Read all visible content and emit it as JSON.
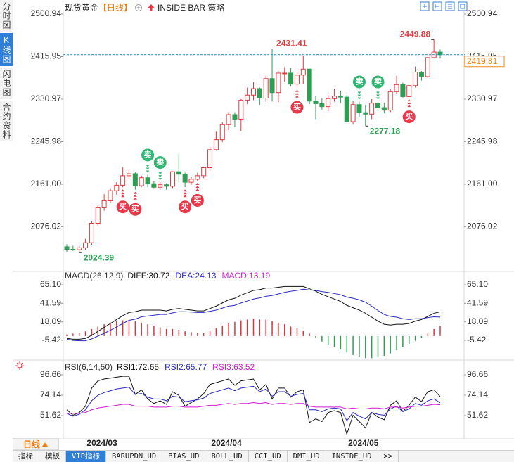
{
  "header": {
    "instrument": "现货黄金",
    "period": "【日线】",
    "strategy": "INSIDE BAR 策略"
  },
  "sidebar": {
    "tabs": [
      "分时图",
      "K线图",
      "闪电图",
      "合约资料"
    ],
    "selected": "K线图"
  },
  "chart_data": [
    {
      "type": "candlestick",
      "categories": [
        null,
        null,
        null,
        null,
        "2024/03",
        null,
        null,
        null,
        null,
        null,
        null,
        null,
        null,
        null,
        null,
        null,
        null,
        null,
        null,
        null,
        null,
        null,
        null,
        null,
        "2024/04",
        null,
        null,
        null,
        null,
        null,
        null,
        null,
        null,
        null,
        null,
        null,
        null,
        null,
        null,
        null,
        null,
        null,
        null,
        null,
        null,
        null,
        "2024/05",
        null,
        null,
        null,
        null,
        null,
        null,
        null,
        null,
        null,
        null,
        null,
        null,
        null,
        null
      ],
      "open": [
        2036,
        2031,
        2030,
        2034,
        2044,
        2083,
        2114,
        2128,
        2148,
        2159,
        2178,
        2182,
        2158,
        2174,
        2162,
        2155,
        2160,
        2157,
        2186,
        2181,
        2165,
        2171,
        2178,
        2194,
        2230,
        2250,
        2280,
        2300,
        2291,
        2329,
        2339,
        2352,
        2333,
        2372,
        2344,
        2383,
        2383,
        2361,
        2379,
        2391,
        2327,
        2322,
        2316,
        2332,
        2337,
        2335,
        2286,
        2320,
        2304,
        2301,
        2323,
        2314,
        2309,
        2346,
        2360,
        2336,
        2358,
        2385,
        2376,
        2414,
        2425
      ],
      "high": [
        2041,
        2038,
        2040,
        2052,
        2088,
        2119,
        2141,
        2152,
        2165,
        2195,
        2189,
        2185,
        2178,
        2180,
        2168,
        2165,
        2163,
        2187,
        2222,
        2184,
        2176,
        2184,
        2196,
        2236,
        2266,
        2285,
        2305,
        2305,
        2331,
        2354,
        2365,
        2354,
        2378,
        2431.41,
        2387,
        2395,
        2393,
        2386,
        2418,
        2392,
        2337,
        2333,
        2339,
        2352,
        2348,
        2339,
        2327,
        2326,
        2320,
        2331,
        2326,
        2324,
        2351,
        2378,
        2364,
        2359,
        2396,
        2387,
        2415,
        2449.88,
        2430
      ],
      "low": [
        2025,
        2028,
        2024.39,
        2030,
        2040,
        2079,
        2108,
        2124,
        2140,
        2155,
        2170,
        2150,
        2155,
        2155,
        2152,
        2150,
        2150,
        2152,
        2165,
        2155,
        2160,
        2168,
        2173,
        2188,
        2228,
        2245,
        2269,
        2275,
        2267,
        2321,
        2329,
        2319,
        2325,
        2326,
        2325,
        2366,
        2356,
        2354,
        2362,
        2321,
        2291,
        2310,
        2307,
        2326,
        2323,
        2285,
        2280,
        2296,
        2277.18,
        2291,
        2307,
        2303,
        2305,
        2342,
        2334,
        2335,
        2354,
        2368,
        2374,
        2413,
        2412
      ],
      "close": [
        2031,
        2030,
        2034,
        2044,
        2083,
        2114,
        2128,
        2148,
        2159,
        2178,
        2182,
        2158,
        2174,
        2162,
        2155,
        2160,
        2157,
        2186,
        2181,
        2165,
        2171,
        2178,
        2194,
        2230,
        2250,
        2280,
        2300,
        2291,
        2329,
        2339,
        2352,
        2333,
        2372,
        2344,
        2383,
        2383,
        2361,
        2379,
        2391,
        2327,
        2322,
        2316,
        2332,
        2337,
        2335,
        2286,
        2320,
        2304,
        2301,
        2323,
        2314,
        2309,
        2346,
        2360,
        2336,
        2358,
        2385,
        2376,
        2414,
        2425,
        2419.81
      ],
      "signals": [
        null,
        null,
        null,
        null,
        null,
        null,
        null,
        null,
        null,
        "买",
        null,
        "买",
        null,
        "卖",
        null,
        "卖",
        null,
        null,
        null,
        "买",
        null,
        "买",
        null,
        null,
        null,
        null,
        null,
        null,
        null,
        null,
        null,
        null,
        null,
        null,
        null,
        null,
        null,
        "买",
        null,
        null,
        null,
        null,
        null,
        null,
        null,
        null,
        null,
        "卖",
        null,
        null,
        "卖",
        null,
        null,
        null,
        null,
        "买",
        null,
        null,
        null,
        null,
        null
      ],
      "annotations": [
        2431.41,
        2449.88,
        2277.18,
        2024.39
      ],
      "up_color": "#e0393e",
      "down_color": "#2e9e55",
      "last_price_color": "#f08a1c",
      "last_line_color": "#2a8fbd",
      "buy_color": "#e8394a",
      "sell_color": "#2eb872",
      "ylim": [
        1988.15,
        2500.94
      ],
      "yticks": [
        2500.94,
        2415.95,
        2330.97,
        2245.98,
        {
          "value": 2161,
          "label": "2161.00"
        },
        2076.02
      ]
    },
    {
      "type": "macd",
      "title": "MACD(26,12,9)",
      "series": [
        {
          "name": "DIFF:30.72",
          "color": "#111111",
          "values": [
            -3,
            -4,
            -4,
            -3,
            1,
            6,
            11,
            16,
            21,
            26,
            30,
            31,
            33,
            33,
            33,
            33,
            32,
            34,
            35,
            34,
            33,
            32,
            32,
            35,
            38,
            42,
            46,
            48,
            52,
            55,
            58,
            59,
            61,
            61,
            62,
            63,
            63,
            63,
            63,
            60,
            57,
            53,
            50,
            47,
            44,
            39,
            36,
            33,
            29,
            24,
            19,
            15,
            14,
            15,
            15,
            16,
            19,
            21,
            25,
            29,
            30.72
          ]
        },
        {
          "name": "DEA:24.13",
          "color": "#2b2bc4",
          "values": [
            -4,
            -5.5,
            -6,
            -6,
            -3.5,
            0,
            3.5,
            7.5,
            11.5,
            16,
            20,
            21.5,
            24.5,
            25.5,
            26.5,
            27.5,
            27.5,
            29.5,
            31,
            31,
            30.5,
            30,
            30,
            31.5,
            33,
            35.5,
            38,
            39,
            42,
            44.5,
            47,
            48.5,
            50.5,
            51.5,
            53.5,
            55.5,
            57,
            58,
            59.5,
            58.5,
            58,
            56.5,
            55.5,
            54,
            52.5,
            49.5,
            48,
            46,
            43,
            38,
            32.5,
            27.5,
            25,
            24,
            22,
            21,
            22,
            22,
            23.5,
            24.5,
            24.13
          ]
        },
        {
          "name": "MACD:13.19",
          "color": "#d21ad2",
          "type": "bar",
          "up_color": "#d9363e",
          "down_color": "#2e9e55",
          "values": [
            2,
            3,
            4,
            6,
            9,
            12,
            15,
            17,
            19,
            20,
            20,
            19,
            17,
            15,
            13,
            11,
            9,
            9,
            8,
            6,
            5,
            4,
            4,
            7,
            10,
            13,
            16,
            18,
            20,
            21,
            22,
            21,
            21,
            19,
            17,
            15,
            12,
            10,
            7,
            3,
            -2,
            -7,
            -11,
            -14,
            -17,
            -21,
            -24,
            -26,
            -28,
            -28,
            -27,
            -25,
            -22,
            -18,
            -14,
            -10,
            -6,
            -2,
            3,
            9,
            13.19
          ]
        }
      ],
      "ylim": [
        -30.42,
        80.28
      ],
      "yticks": [
        {
          "value": 65.1,
          "label": "65.10"
        },
        41.59,
        18.09,
        -5.42
      ]
    },
    {
      "type": "line",
      "title": "RSI(6,14,50)",
      "series": [
        {
          "name": "RSI1:72.65",
          "color": "#111111",
          "values": [
            58,
            52,
            55,
            62,
            82,
            90,
            92,
            93,
            94,
            95,
            95,
            75,
            80,
            70,
            65,
            68,
            64,
            78,
            74,
            62,
            66,
            70,
            76,
            86,
            88,
            90,
            92,
            85,
            90,
            91,
            92,
            80,
            86,
            70,
            82,
            82,
            72,
            78,
            80,
            44,
            48,
            45,
            55,
            57,
            55,
            31,
            52,
            45,
            38,
            55,
            50,
            47,
            63,
            68,
            56,
            63,
            72,
            67,
            78,
            80,
            72.65
          ]
        },
        {
          "name": "RSI2:65.77",
          "color": "#2b2bc4",
          "values": [
            54,
            51,
            53,
            58,
            68,
            74,
            77,
            79,
            81,
            82,
            83,
            75,
            76,
            72,
            70,
            70,
            68,
            73,
            72,
            67,
            68,
            69,
            71,
            76,
            78,
            80,
            82,
            79,
            82,
            83,
            84,
            78,
            81,
            73,
            78,
            78,
            73,
            75,
            76,
            58,
            58,
            56,
            59,
            60,
            59,
            46,
            55,
            51,
            48,
            55,
            53,
            52,
            59,
            62,
            56,
            59,
            65,
            63,
            68,
            70,
            65.77
          ]
        },
        {
          "name": "RSI3:63.52",
          "color": "#d21ad2",
          "values": [
            54,
            54,
            54,
            55,
            58,
            60,
            61,
            62,
            63,
            64,
            64,
            62,
            62,
            62,
            61,
            61,
            61,
            62,
            62,
            61,
            61,
            61,
            62,
            63,
            63,
            64,
            65,
            64,
            65,
            65,
            66,
            65,
            66,
            64,
            65,
            65,
            64,
            65,
            65,
            62,
            61,
            61,
            61,
            61,
            61,
            59,
            60,
            59,
            59,
            60,
            60,
            59,
            61,
            61,
            60,
            61,
            62,
            62,
            63,
            64,
            63.52
          ]
        }
      ],
      "ylim": [
        25.99,
        108.31
      ],
      "yticks": [
        96.66,
        74.14,
        51.62
      ]
    }
  ],
  "footer": {
    "period": "日线",
    "tabs": [
      "指标",
      "模板",
      "VIP指标",
      "BARUPDN_UD",
      "BIAS_UD",
      "BOLL_UD",
      "CCI_UD",
      "DMI_UD",
      "INSIDE_UD",
      ">>"
    ],
    "selected": "VIP指标"
  }
}
